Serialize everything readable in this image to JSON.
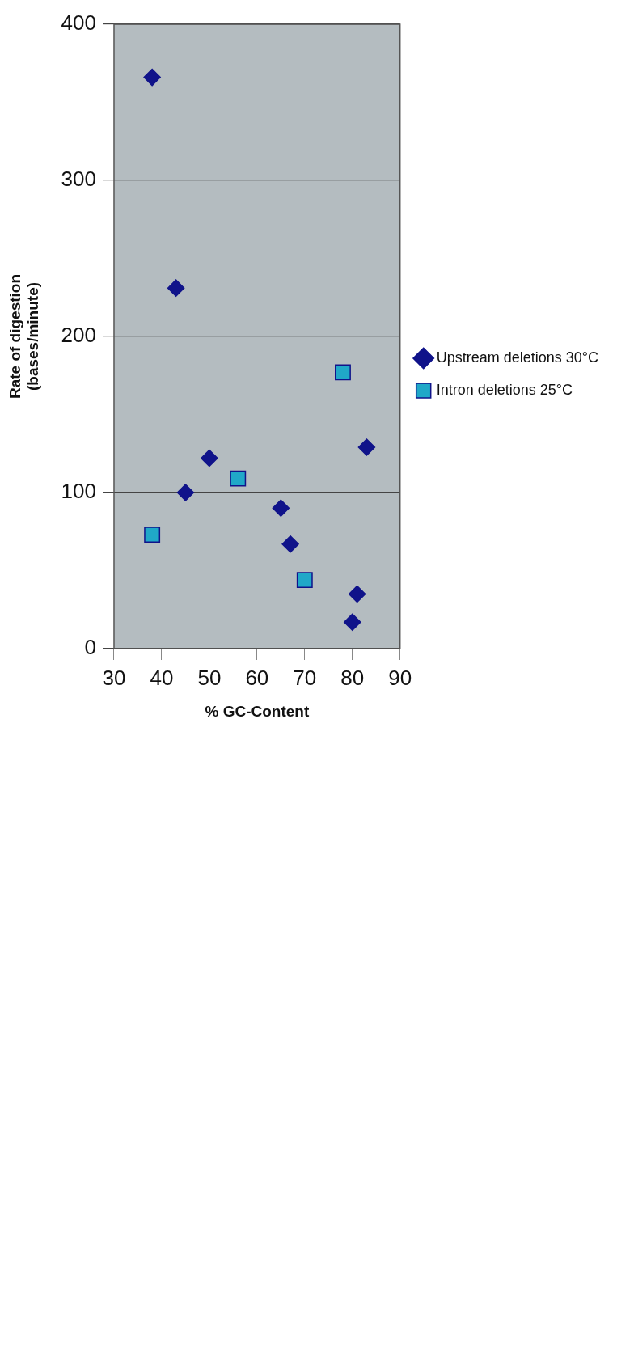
{
  "chart_data": {
    "type": "scatter",
    "xlabel": "% GC-Content",
    "ylabel": "Rate of digestion\n(bases/minute)",
    "xlim": [
      30,
      90
    ],
    "xticks": [
      30,
      40,
      50,
      60,
      70,
      80,
      90
    ],
    "ylim": [
      0,
      400
    ],
    "yticks": [
      0,
      100,
      200,
      300,
      400
    ],
    "grid": "y",
    "legend": "right",
    "series": [
      {
        "name": "Upstream deletions 30°C",
        "color": "#10138a",
        "marker": "diamond",
        "x": [
          38,
          43,
          45,
          50,
          65,
          67,
          80,
          81,
          83
        ],
        "values": [
          366,
          231,
          100,
          122,
          90,
          67,
          17,
          35,
          129
        ]
      },
      {
        "name": "Intron deletions 25°C",
        "color": "#20a8c8",
        "marker": "square",
        "x": [
          38,
          56,
          70,
          78
        ],
        "values": [
          73,
          109,
          44,
          177
        ]
      }
    ]
  }
}
